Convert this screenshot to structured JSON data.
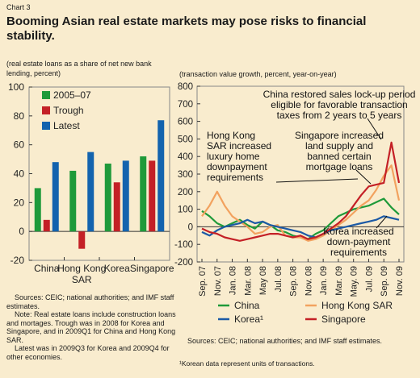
{
  "chart_label": "Chart 3",
  "title": "Booming  Asian real estate markets may pose risks to financial stability.",
  "left_subtitle": "(real estate loans as a share of net new bank lending, percent)",
  "right_subtitle": "(transaction value growth, percent, year-on-year)",
  "left_sources": [
    "Sources: CEIC; national authorities; and IMF staff estimates.",
    "Note: Real estate loans include construction loans and mortages. Trough was in 2008 for Korea and Singapore, and in 2009Q1 for China and Hong Kong SAR.",
    "Latest was in 2009Q3 for Korea and 2009Q4 for other economies."
  ],
  "right_sources": "Sources: CEIC; national authorities; and IMF staff estimates.",
  "footnote": "¹Korean data represent units of transactions.",
  "colors": {
    "background": "#f9ecce",
    "green": "#1f9a3a",
    "red": "#c42026",
    "blue": "#1363ae",
    "orange": "#f2a25f",
    "dark_blue": "#1c5aa6"
  },
  "chart_data": [
    {
      "type": "bar",
      "categories": [
        "China",
        "Hong Kong SAR",
        "Korea",
        "Singapore"
      ],
      "category_lines": [
        [
          "China"
        ],
        [
          "Hong Kong",
          "SAR"
        ],
        [
          "Korea"
        ],
        [
          "Singapore"
        ]
      ],
      "series": [
        {
          "name": "2005–07",
          "color": "#1f9a3a",
          "values": [
            30,
            42,
            47,
            52
          ]
        },
        {
          "name": "Trough",
          "color": "#c42026",
          "values": [
            8,
            -12,
            34,
            49
          ]
        },
        {
          "name": "Latest",
          "color": "#1363ae",
          "values": [
            48,
            55,
            49,
            77
          ]
        }
      ],
      "ylim": [
        -20,
        100
      ],
      "yticks": [
        -20,
        0,
        20,
        40,
        60,
        80,
        100
      ],
      "legend_placement": "top-left"
    },
    {
      "type": "line",
      "x": [
        "Sep. 07",
        "Oct. 07",
        "Nov. 07",
        "Dec. 07",
        "Jan. 08",
        "Feb. 08",
        "Mar. 08",
        "Apr. 08",
        "May 08",
        "Jun. 08",
        "Jul. 08",
        "Aug. 08",
        "Sep. 08",
        "Oct. 08",
        "Nov. 08",
        "Dec. 08",
        "Jan. 09",
        "Feb. 09",
        "Mar. 09",
        "Apr. 09",
        "May 09",
        "Jun. 09",
        "Jul. 09",
        "Aug. 09",
        "Sep. 09",
        "Oct. 09",
        "Nov. 09"
      ],
      "tick_labels": [
        "Sep. 07",
        "Nov. 07",
        "Jan. 08",
        "Mar. 08",
        "May 08",
        "Jul. 08",
        "Sep. 08",
        "Nov. 08",
        "Jan. 09",
        "Mar. 09",
        "May. 09",
        "Jul. 09",
        "Sep. 09",
        "Nov. 09"
      ],
      "series": [
        {
          "name": "China",
          "color": "#1f9a3a",
          "values": [
            90,
            60,
            20,
            0,
            20,
            40,
            10,
            -10,
            30,
            10,
            -20,
            -30,
            -50,
            -60,
            -70,
            -40,
            -20,
            20,
            60,
            80,
            100,
            110,
            120,
            140,
            160,
            110,
            70
          ]
        },
        {
          "name": "Hong Kong SAR",
          "color": "#f2a25f",
          "values": [
            60,
            120,
            200,
            120,
            60,
            30,
            0,
            -40,
            -30,
            0,
            10,
            -50,
            -60,
            -60,
            -80,
            -70,
            -50,
            -20,
            10,
            40,
            80,
            120,
            150,
            210,
            290,
            350,
            150
          ]
        },
        {
          "name": "Korea¹",
          "color": "#1c5aa6",
          "values": [
            -30,
            -50,
            -20,
            0,
            10,
            20,
            40,
            20,
            30,
            10,
            0,
            -10,
            -20,
            -30,
            -50,
            -60,
            -40,
            -20,
            -10,
            0,
            10,
            20,
            30,
            40,
            60,
            50,
            40
          ]
        },
        {
          "name": "Singapore",
          "color": "#c42026",
          "values": [
            -10,
            -30,
            -40,
            -60,
            -70,
            -80,
            -70,
            -60,
            -50,
            -40,
            -40,
            -50,
            -60,
            -50,
            -70,
            -60,
            -40,
            -10,
            20,
            60,
            120,
            180,
            230,
            240,
            250,
            480,
            250
          ]
        }
      ],
      "ylim": [
        -200,
        800
      ],
      "yticks": [
        -200,
        -100,
        0,
        100,
        200,
        300,
        400,
        500,
        600,
        700,
        800
      ],
      "annotations": [
        [
          "Hong Kong",
          "SAR increased",
          "luxury home",
          "downpayment",
          "requirements"
        ],
        [
          "China restored sales lock-up period",
          "eligible for favorable transaction",
          "taxes from 2 years to 5 years"
        ],
        [
          "Singapore increased",
          "land supply and",
          "banned certain",
          "mortgage loans"
        ],
        [
          "Korea increased",
          "down-payment",
          "requirements"
        ]
      ]
    }
  ]
}
